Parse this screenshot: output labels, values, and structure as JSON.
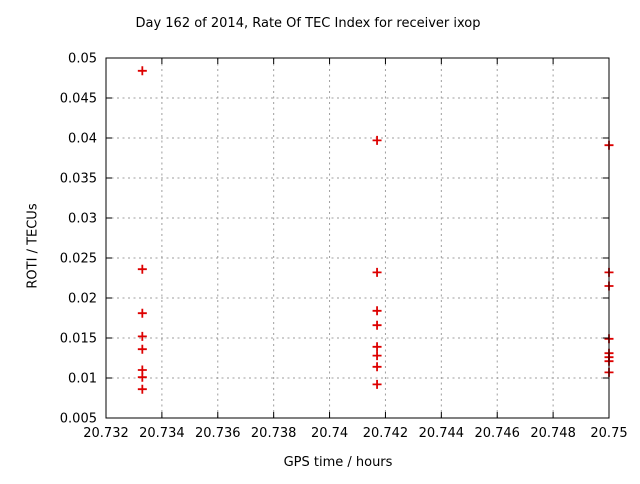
{
  "window": {
    "background": "#ffffff"
  },
  "chart_data": {
    "type": "scatter",
    "title": "Day 162 of 2014, Rate Of TEC Index for receiver ixop",
    "xlabel": "GPS time / hours",
    "ylabel": "ROTI / TECUs",
    "xlim": [
      20.732,
      20.75
    ],
    "ylim": [
      0.005,
      0.05
    ],
    "xtick_values": [
      20.732,
      20.734,
      20.736,
      20.738,
      20.74,
      20.742,
      20.744,
      20.746,
      20.748,
      20.75
    ],
    "xtick_labels": [
      "20.732",
      "20.734",
      "20.736",
      "20.738",
      "20.74",
      "20.742",
      "20.744",
      "20.746",
      "20.748",
      "20.75"
    ],
    "ytick_values": [
      0.005,
      0.01,
      0.015,
      0.02,
      0.025,
      0.03,
      0.035,
      0.04,
      0.045,
      0.05
    ],
    "ytick_labels": [
      "0.005",
      "0.01",
      "0.015",
      "0.02",
      "0.025",
      "0.03",
      "0.035",
      "0.04",
      "0.045",
      "0.05"
    ],
    "grid": true,
    "legend": false,
    "marker": {
      "shape": "plus",
      "color": "#dd0000",
      "size": 9
    },
    "axis_color": "#000000",
    "grid_color": "#9e9e9e",
    "background": "#ffffff",
    "series": [
      {
        "name": "ROTI",
        "points": [
          [
            20.7333,
            0.0484
          ],
          [
            20.7333,
            0.0236
          ],
          [
            20.7333,
            0.0181
          ],
          [
            20.7333,
            0.0152
          ],
          [
            20.7333,
            0.0136
          ],
          [
            20.7333,
            0.011
          ],
          [
            20.7333,
            0.0101
          ],
          [
            20.7333,
            0.0086
          ],
          [
            20.7417,
            0.0397
          ],
          [
            20.7417,
            0.0232
          ],
          [
            20.7417,
            0.0184
          ],
          [
            20.7417,
            0.0166
          ],
          [
            20.7417,
            0.0139
          ],
          [
            20.7417,
            0.0128
          ],
          [
            20.7417,
            0.0114
          ],
          [
            20.7417,
            0.0092
          ],
          [
            20.75,
            0.0391
          ],
          [
            20.75,
            0.0232
          ],
          [
            20.75,
            0.0215
          ],
          [
            20.75,
            0.0149
          ],
          [
            20.75,
            0.0131
          ],
          [
            20.75,
            0.0126
          ],
          [
            20.75,
            0.0121
          ],
          [
            20.75,
            0.0107
          ]
        ]
      }
    ]
  }
}
